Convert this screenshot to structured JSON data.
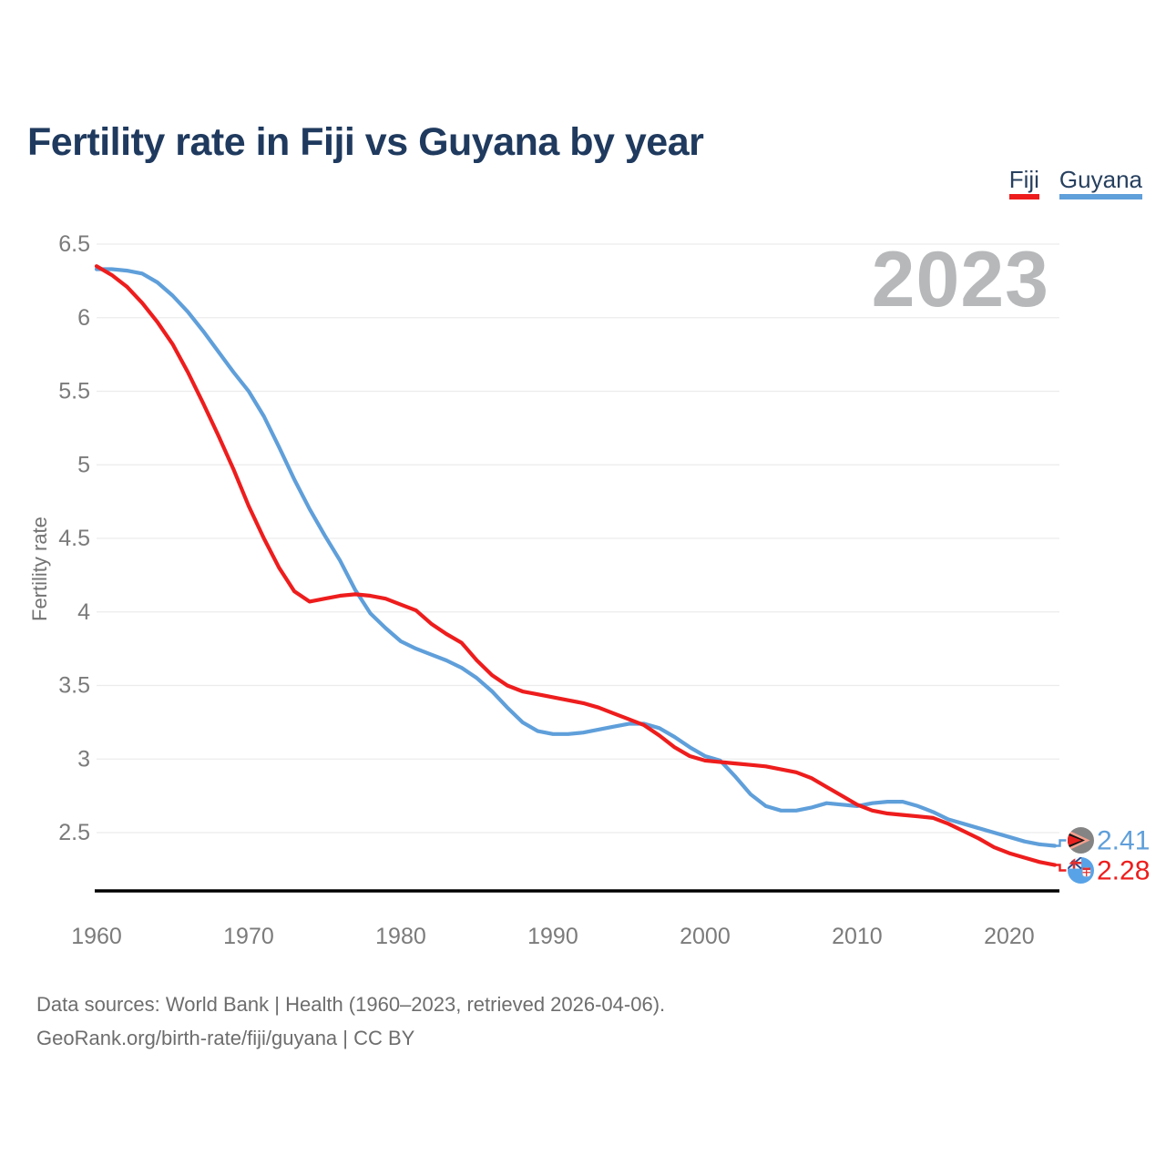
{
  "page": {
    "footer": {
      "line1": "Data sources: World Bank | Health (1960–2023, retrieved 2026-04-06).",
      "line2": "GeoRank.org/birth-rate/fiji/guyana | CC BY"
    }
  },
  "chart_data": {
    "type": "line",
    "title": "Fertility rate in Fiji vs Guyana by year",
    "xlabel": "",
    "ylabel": "Fertility rate",
    "watermark": "2023",
    "grid": true,
    "legend_position": "top-right",
    "xlim": [
      1960,
      2023
    ],
    "ylim": [
      2.1,
      6.6
    ],
    "x_ticks": [
      1960,
      1970,
      1980,
      1990,
      2000,
      2010,
      2020
    ],
    "y_ticks": [
      6.5,
      6,
      5.5,
      5,
      4.5,
      4,
      3.5,
      3,
      2.5
    ],
    "start_year": 1960,
    "end_year": 2023,
    "series": [
      {
        "name": "Fiji",
        "color": "#ee1d1d",
        "flag": "fiji",
        "end_label": "2.28",
        "values": [
          6.35,
          6.29,
          6.21,
          6.1,
          5.97,
          5.82,
          5.63,
          5.42,
          5.2,
          4.97,
          4.72,
          4.5,
          4.3,
          4.14,
          4.07,
          4.09,
          4.11,
          4.12,
          4.11,
          4.09,
          4.05,
          4.01,
          3.92,
          3.85,
          3.79,
          3.67,
          3.57,
          3.5,
          3.46,
          3.44,
          3.42,
          3.4,
          3.38,
          3.35,
          3.31,
          3.27,
          3.23,
          3.16,
          3.08,
          3.02,
          2.99,
          2.98,
          2.97,
          2.96,
          2.95,
          2.93,
          2.91,
          2.87,
          2.81,
          2.75,
          2.69,
          2.65,
          2.63,
          2.62,
          2.61,
          2.6,
          2.56,
          2.51,
          2.46,
          2.4,
          2.36,
          2.33,
          2.3,
          2.28
        ]
      },
      {
        "name": "Guyana",
        "color": "#5f9fda",
        "flag": "guyana",
        "end_label": "2.41",
        "values": [
          6.33,
          6.33,
          6.32,
          6.3,
          6.24,
          6.15,
          6.04,
          5.91,
          5.77,
          5.63,
          5.5,
          5.33,
          5.12,
          4.9,
          4.7,
          4.52,
          4.35,
          4.15,
          3.99,
          3.89,
          3.8,
          3.75,
          3.71,
          3.67,
          3.62,
          3.55,
          3.46,
          3.35,
          3.25,
          3.19,
          3.17,
          3.17,
          3.18,
          3.2,
          3.22,
          3.24,
          3.24,
          3.21,
          3.15,
          3.08,
          3.02,
          2.99,
          2.88,
          2.76,
          2.68,
          2.65,
          2.65,
          2.67,
          2.7,
          2.69,
          2.68,
          2.7,
          2.71,
          2.71,
          2.68,
          2.64,
          2.59,
          2.56,
          2.53,
          2.5,
          2.47,
          2.44,
          2.42,
          2.41
        ]
      }
    ]
  }
}
